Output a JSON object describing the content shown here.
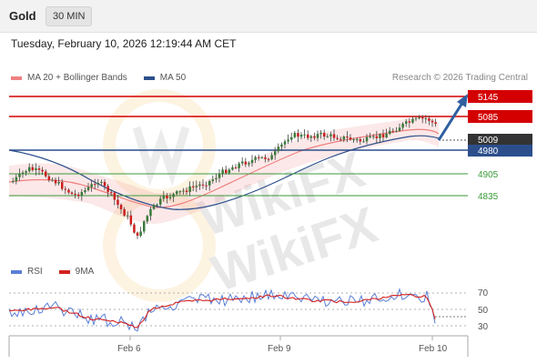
{
  "header": {
    "symbol": "Gold",
    "timeframe": "30 MIN",
    "datetime": "Tuesday, February 10, 2026 12:19:44 AM CET"
  },
  "legend": {
    "items": [
      {
        "label": "MA 20 + Bollinger Bands",
        "color": "#f08080"
      },
      {
        "label": "MA 50",
        "color": "#2c4f8c"
      }
    ],
    "credit": "Research © 2026 Trading Central"
  },
  "levels": [
    {
      "value": "5145",
      "style": "resistance"
    },
    {
      "value": "5085",
      "style": "resistance"
    },
    {
      "value": "5009",
      "style": "last"
    },
    {
      "value": "4980",
      "style": "pivot"
    },
    {
      "value": "4905",
      "style": "support"
    },
    {
      "value": "4835",
      "style": "support"
    }
  ],
  "rsi": {
    "legend": [
      {
        "label": "RSI",
        "color": "#5b7fd6"
      },
      {
        "label": "9MA",
        "color": "#d42020"
      }
    ],
    "ticks": [
      "70",
      "50",
      "30"
    ]
  },
  "x_axis": [
    "Feb 6",
    "Feb 9",
    "Feb 10"
  ],
  "watermark": "WikiFX",
  "colors": {
    "resistance": "#d40000",
    "pivot": "#2c4f8c",
    "support": "#3a9a3a",
    "bull": "#3a7a3a",
    "bear": "#cc1e1e",
    "arrow": "#2f5f9f"
  },
  "chart_data": {
    "type": "candlestick",
    "price_range": [
      4700,
      5180
    ],
    "last_price": 5009,
    "resistance": [
      5145,
      5085
    ],
    "pivot": 4980,
    "support": [
      4905,
      4835
    ],
    "forecast_direction": "up",
    "x_ticks": [
      "Feb 6",
      "Feb 9",
      "Feb 10"
    ],
    "rsi_ticks": [
      70,
      50,
      30
    ],
    "series": [
      {
        "name": "MA 20 + Bollinger Bands"
      },
      {
        "name": "MA 50"
      },
      {
        "name": "RSI"
      },
      {
        "name": "9MA"
      }
    ]
  }
}
